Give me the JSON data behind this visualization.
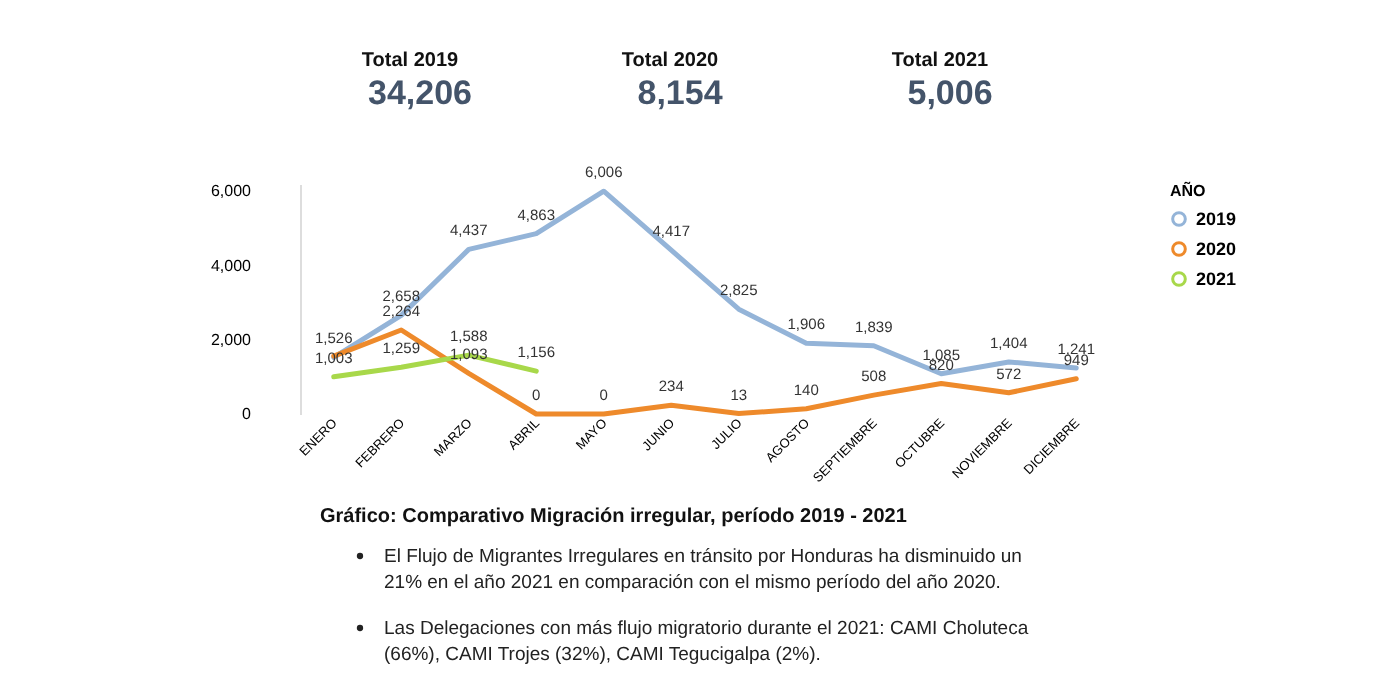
{
  "chart_data": {
    "type": "line",
    "annotations": [
      "Total 2019",
      "34,206",
      "Total 2020",
      "8,154",
      "Total 2021",
      "5,006",
      "Gráfico: Comparativo Migración irregular, período 2019 - 2021",
      "El Flujo de Migrantes Irregulares en tránsito por Honduras ha disminuido un 21% en el año 2021 en comparación con el mismo período del año 2020.",
      "Las Delegaciones con más flujo migratorio durante el 2021: CAMI Choluteca (66%), CAMI Trojes (32%), CAMI Tegucigalpa (2%)."
    ],
    "legend_title": "AÑO",
    "categories": [
      "ENERO",
      "FEBRERO",
      "MARZO",
      "ABRIL",
      "MAYO",
      "JUNIO",
      "JULIO",
      "AGOSTO",
      "SEPTIEMBRE",
      "OCTUBRE",
      "NOVIEMBRE",
      "DICIEMBRE"
    ],
    "series": [
      {
        "name": "2019",
        "color": "#94b4d8",
        "values": [
          1526,
          2658,
          4437,
          4863,
          6006,
          4417,
          2825,
          1906,
          1839,
          1085,
          1404,
          1241
        ],
        "value_labels": [
          "1,526",
          "2,658",
          "4,437",
          "4,863",
          "6,006",
          "4,417",
          "2,825",
          "1,906",
          "1,839",
          "1,085",
          "1,404",
          "1,241"
        ]
      },
      {
        "name": "2020",
        "color": "#ee8a2b",
        "values": [
          1560,
          2264,
          1093,
          0,
          0,
          234,
          13,
          140,
          508,
          820,
          572,
          949
        ],
        "value_labels": [
          null,
          "2,264",
          "1,093",
          "0",
          "0",
          "234",
          "13",
          "140",
          "508",
          "820",
          "572",
          "949"
        ]
      },
      {
        "name": "2021",
        "color": "#a8d84a",
        "values": [
          1003,
          1259,
          1588,
          1156,
          null,
          null,
          null,
          null,
          null,
          null,
          null,
          null
        ],
        "value_labels": [
          "1,003",
          "1,259",
          "1,588",
          "1,156",
          null,
          null,
          null,
          null,
          null,
          null,
          null,
          null
        ]
      }
    ],
    "ylim": [
      0,
      6200
    ],
    "yticks": [
      0,
      {
        "value": 2000,
        "label": "2,000"
      },
      {
        "value": 4000,
        "label": "4,000"
      },
      {
        "value": 6000,
        "label": "6,000"
      }
    ],
    "grid": false,
    "legend": "top right"
  }
}
